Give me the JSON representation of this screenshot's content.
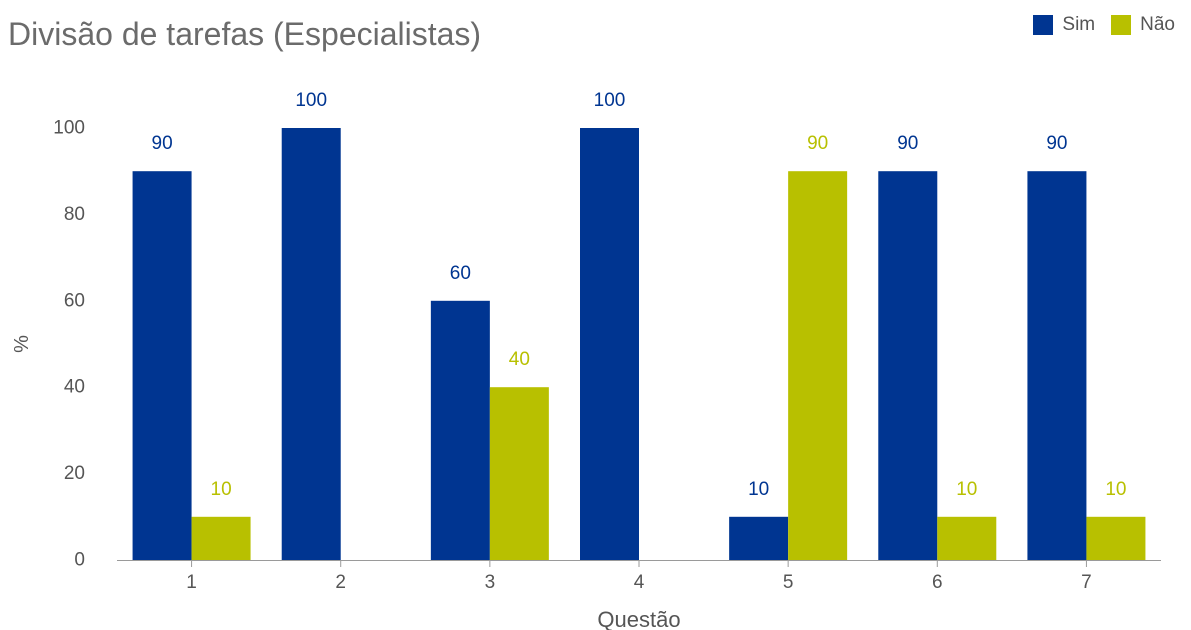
{
  "chart_data": {
    "type": "bar",
    "title": "Divisão de tarefas (Especialistas)",
    "xlabel": "Questão",
    "ylabel": "%",
    "categories": [
      "1",
      "2",
      "3",
      "4",
      "5",
      "6",
      "7"
    ],
    "series": [
      {
        "name": "Sim",
        "values": [
          90,
          100,
          60,
          100,
          10,
          90,
          90
        ],
        "color": "#003591"
      },
      {
        "name": "Não",
        "values": [
          10,
          null,
          40,
          null,
          90,
          10,
          10
        ],
        "color": "#b8c000"
      }
    ],
    "ylim": [
      0,
      100
    ],
    "yticks": [
      0,
      20,
      40,
      60,
      80,
      100
    ],
    "grid": false,
    "legend_position": "top-right",
    "data_labels": true
  }
}
